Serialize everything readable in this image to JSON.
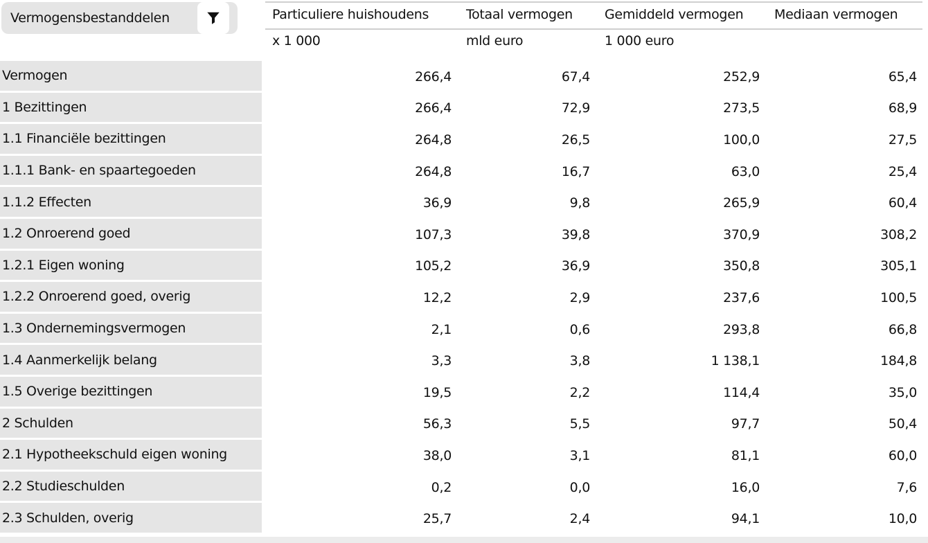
{
  "filter_control": {
    "label": "Vermogensbestanddelen",
    "icon": "filter-icon"
  },
  "table": {
    "column_headers": [
      "Particuliere huishoudens",
      "Totaal vermogen",
      "Gemiddeld vermogen",
      "Mediaan vermogen"
    ],
    "unit_row": [
      "x 1 000",
      "mld euro",
      "1 000 euro",
      ""
    ],
    "rows": [
      {
        "label": "Vermogen",
        "values": [
          "266,4",
          "67,4",
          "252,9",
          "65,4"
        ]
      },
      {
        "label": "1 Bezittingen",
        "values": [
          "266,4",
          "72,9",
          "273,5",
          "68,9"
        ]
      },
      {
        "label": "1.1 Financiële bezittingen",
        "values": [
          "264,8",
          "26,5",
          "100,0",
          "27,5"
        ]
      },
      {
        "label": "1.1.1 Bank- en spaartegoeden",
        "values": [
          "264,8",
          "16,7",
          "63,0",
          "25,4"
        ]
      },
      {
        "label": "1.1.2 Effecten",
        "values": [
          "36,9",
          "9,8",
          "265,9",
          "60,4"
        ]
      },
      {
        "label": "1.2 Onroerend goed",
        "values": [
          "107,3",
          "39,8",
          "370,9",
          "308,2"
        ]
      },
      {
        "label": "1.2.1 Eigen woning",
        "values": [
          "105,2",
          "36,9",
          "350,8",
          "305,1"
        ]
      },
      {
        "label": "1.2.2 Onroerend goed, overig",
        "values": [
          "12,2",
          "2,9",
          "237,6",
          "100,5"
        ]
      },
      {
        "label": "1.3 Ondernemingsvermogen",
        "values": [
          "2,1",
          "0,6",
          "293,8",
          "66,8"
        ]
      },
      {
        "label": "1.4 Aanmerkelijk belang",
        "values": [
          "3,3",
          "3,8",
          "1 138,1",
          "184,8"
        ]
      },
      {
        "label": "1.5 Overige bezittingen",
        "values": [
          "19,5",
          "2,2",
          "114,4",
          "35,0"
        ]
      },
      {
        "label": "2 Schulden",
        "values": [
          "56,3",
          "5,5",
          "97,7",
          "50,4"
        ]
      },
      {
        "label": "2.1 Hypotheekschuld eigen woning",
        "values": [
          "38,0",
          "3,1",
          "81,1",
          "60,0"
        ]
      },
      {
        "label": "2.2 Studieschulden",
        "values": [
          "0,2",
          "0,0",
          "16,0",
          "7,6"
        ]
      },
      {
        "label": "2.3 Schulden, overig",
        "values": [
          "25,7",
          "2,4",
          "94,1",
          "10,0"
        ]
      }
    ]
  },
  "colors": {
    "label_bg": "#e5e5e5",
    "line": "#cfcfcf",
    "strip": "#ececec",
    "text": "#111111"
  }
}
